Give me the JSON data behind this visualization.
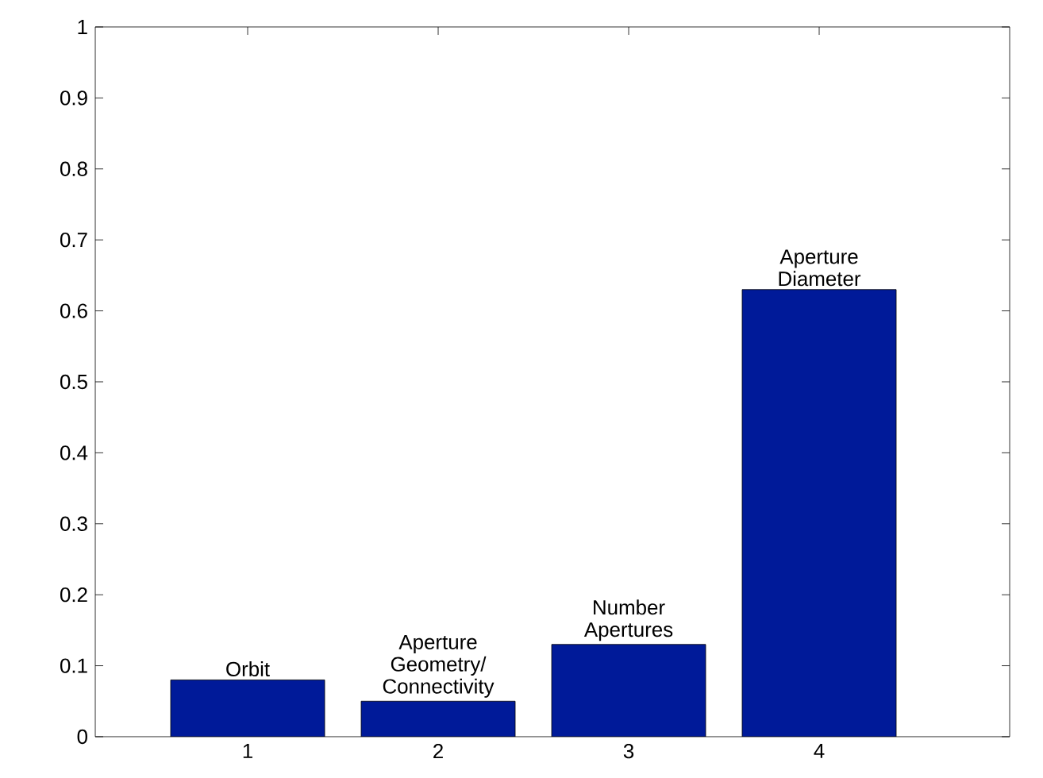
{
  "chart_data": {
    "type": "bar",
    "categories": [
      "1",
      "2",
      "3",
      "4"
    ],
    "values": [
      0.08,
      0.05,
      0.13,
      0.63
    ],
    "color": "#001a99",
    "ylim": [
      0,
      1
    ],
    "yticks": [
      0,
      0.1,
      0.2,
      0.3,
      0.4,
      0.5,
      0.6,
      0.7,
      0.8,
      0.9,
      1
    ],
    "grid": false,
    "annotations": [
      {
        "text": "Orbit",
        "x": "1",
        "y": 0.08
      },
      {
        "text": "Aperture Geometry/ Connectivity",
        "x": "2",
        "y": 0.05
      },
      {
        "text": "Number Apertures",
        "x": "3",
        "y": 0.13
      },
      {
        "text": "Aperture Diameter",
        "x": "4",
        "y": 0.63
      }
    ]
  }
}
